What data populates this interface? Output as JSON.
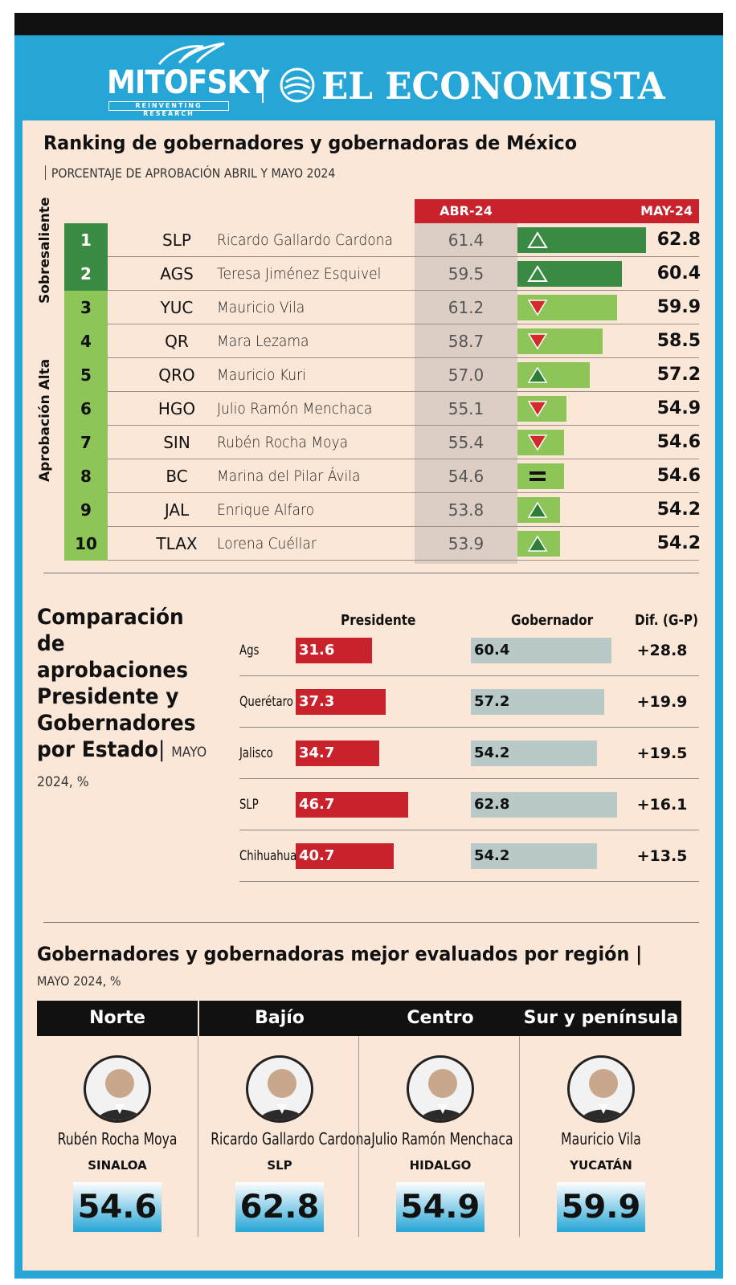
{
  "brand": {
    "mitofsky": "MITOFSKY",
    "mitofsky_tagline": "REINVENTING RESEARCH",
    "economista": "EL ECONOMISTA"
  },
  "colors": {
    "frame": "#26a6d6",
    "panel": "#fbe7d8",
    "red": "#c8232c",
    "dark_green": "#3a8a44",
    "light_green": "#8dc558",
    "gray_bar": "#b9c9c8"
  },
  "ranking": {
    "title": "Ranking de gobernadores y gobernadoras de México",
    "subtitle": "PORCENTAJE DE APROBACIÓN ABRIL Y MAYO 2024",
    "col_abr": "ABR-24",
    "col_may": "MAY-24",
    "group_top": "Sobresaliente",
    "group_high": "Aprobación Alta",
    "rows": [
      {
        "rank": "1",
        "state": "SLP",
        "name": "Ricardo Gallardo Cardona",
        "abr": "61.4",
        "may": "62.8",
        "trend": "up-outline",
        "group": "s"
      },
      {
        "rank": "2",
        "state": "AGS",
        "name": "Teresa Jiménez Esquivel",
        "abr": "59.5",
        "may": "60.4",
        "trend": "up-outline",
        "group": "s"
      },
      {
        "rank": "3",
        "state": "YUC",
        "name": "Mauricio Vila",
        "abr": "61.2",
        "may": "59.9",
        "trend": "down",
        "group": "a"
      },
      {
        "rank": "4",
        "state": "QR",
        "name": "Mara Lezama",
        "abr": "58.7",
        "may": "58.5",
        "trend": "down",
        "group": "a"
      },
      {
        "rank": "5",
        "state": "QRO",
        "name": "Mauricio Kuri",
        "abr": "57.0",
        "may": "57.2",
        "trend": "up",
        "group": "a"
      },
      {
        "rank": "6",
        "state": "HGO",
        "name": "Julio Ramón Menchaca",
        "abr": "55.1",
        "may": "54.9",
        "trend": "down",
        "group": "a"
      },
      {
        "rank": "7",
        "state": "SIN",
        "name": "Rubén Rocha Moya",
        "abr": "55.4",
        "may": "54.6",
        "trend": "down",
        "group": "a"
      },
      {
        "rank": "8",
        "state": "BC",
        "name": "Marina del Pilar Ávila",
        "abr": "54.6",
        "may": "54.6",
        "trend": "equal",
        "group": "a"
      },
      {
        "rank": "9",
        "state": "JAL",
        "name": "Enrique Alfaro",
        "abr": "53.8",
        "may": "54.2",
        "trend": "up",
        "group": "a"
      },
      {
        "rank": "10",
        "state": "TLAX",
        "name": "Lorena Cuéllar",
        "abr": "53.9",
        "may": "54.2",
        "trend": "up",
        "group": "a"
      }
    ]
  },
  "comparison": {
    "title": "Comparación de aprobaciones Presidente y Gobernadores por Estado",
    "unit": "MAYO 2024, %",
    "col_president": "Presidente",
    "col_governor": "Gobernador",
    "col_diff": "Dif. (G-P)",
    "rows": [
      {
        "state": "Ags",
        "president": "31.6",
        "governor": "60.4",
        "diff": "+28.8"
      },
      {
        "state": "Querétaro",
        "president": "37.3",
        "governor": "57.2",
        "diff": "+19.9"
      },
      {
        "state": "Jalisco",
        "president": "34.7",
        "governor": "54.2",
        "diff": "+19.5"
      },
      {
        "state": "SLP",
        "president": "46.7",
        "governor": "62.8",
        "diff": "+16.1"
      },
      {
        "state": "Chihuahua",
        "president": "40.7",
        "governor": "54.2",
        "diff": "+13.5"
      }
    ]
  },
  "regions": {
    "title": "Gobernadores y gobernadoras mejor evaluados por región",
    "subtitle": "MAYO 2024, %",
    "items": [
      {
        "region": "Norte",
        "name": "Rubén Rocha Moya",
        "state": "SINALOA",
        "score": "54.6"
      },
      {
        "region": "Bajío",
        "name": "Ricardo Gallardo Cardona",
        "state": "SLP",
        "score": "62.8"
      },
      {
        "region": "Centro",
        "name": "Julio Ramón Menchaca",
        "state": "HIDALGO",
        "score": "54.9"
      },
      {
        "region": "Sur y península",
        "name": "Mauricio Vila",
        "state": "YUCATÁN",
        "score": "59.9"
      }
    ]
  },
  "chart_data": [
    {
      "type": "bar",
      "title": "Ranking de gobernadores y gobernadoras de México",
      "subtitle": "PORCENTAJE DE APROBACIÓN ABRIL Y MAYO 2024",
      "categories": [
        "SLP",
        "AGS",
        "YUC",
        "QR",
        "QRO",
        "HGO",
        "SIN",
        "BC",
        "JAL",
        "TLAX"
      ],
      "series": [
        {
          "name": "ABR-24",
          "values": [
            61.4,
            59.5,
            61.2,
            58.7,
            57.0,
            55.1,
            55.4,
            54.6,
            53.8,
            53.9
          ]
        },
        {
          "name": "MAY-24",
          "values": [
            62.8,
            60.4,
            59.9,
            58.5,
            57.2,
            54.9,
            54.6,
            54.6,
            54.2,
            54.2
          ]
        }
      ]
    },
    {
      "type": "bar",
      "title": "Comparación de aprobaciones Presidente y Gobernadores por Estado",
      "categories": [
        "Ags",
        "Querétaro",
        "Jalisco",
        "SLP",
        "Chihuahua"
      ],
      "series": [
        {
          "name": "Presidente",
          "values": [
            31.6,
            37.3,
            34.7,
            46.7,
            40.7
          ]
        },
        {
          "name": "Gobernador",
          "values": [
            60.4,
            57.2,
            54.2,
            62.8,
            54.2
          ]
        },
        {
          "name": "Dif. (G-P)",
          "values": [
            28.8,
            19.9,
            19.5,
            16.1,
            13.5
          ]
        }
      ]
    }
  ]
}
